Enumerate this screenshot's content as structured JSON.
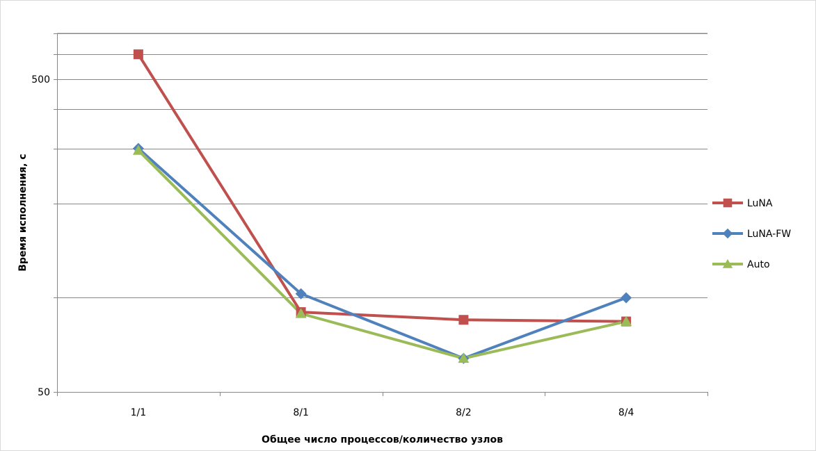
{
  "chart_data": {
    "type": "line",
    "categories": [
      "1/1",
      "8/1",
      "8/2",
      "8/4"
    ],
    "series": [
      {
        "name": "LuNA",
        "values": [
          600,
          90,
          85,
          84
        ],
        "color": "#C0504D",
        "marker": "square"
      },
      {
        "name": "LuNA-FW",
        "values": [
          300,
          103,
          64,
          100
        ],
        "color": "#4F81BD",
        "marker": "diamond"
      },
      {
        "name": "Auto",
        "values": [
          296,
          89,
          64,
          84
        ],
        "color": "#9BBB59",
        "marker": "triangle"
      }
    ],
    "ylabel": "Время исполнения, с",
    "xlabel": "Общее число процессов/количество узлов",
    "yscale": "log",
    "ylim": [
      50,
      700
    ],
    "ytick_labels": [
      {
        "value": 500,
        "label": "500"
      },
      {
        "value": 50,
        "label": "50"
      }
    ],
    "minor_gridlines": [
      100,
      200,
      300,
      400,
      500,
      600,
      700
    ],
    "grid": true,
    "legend_position": "right"
  }
}
